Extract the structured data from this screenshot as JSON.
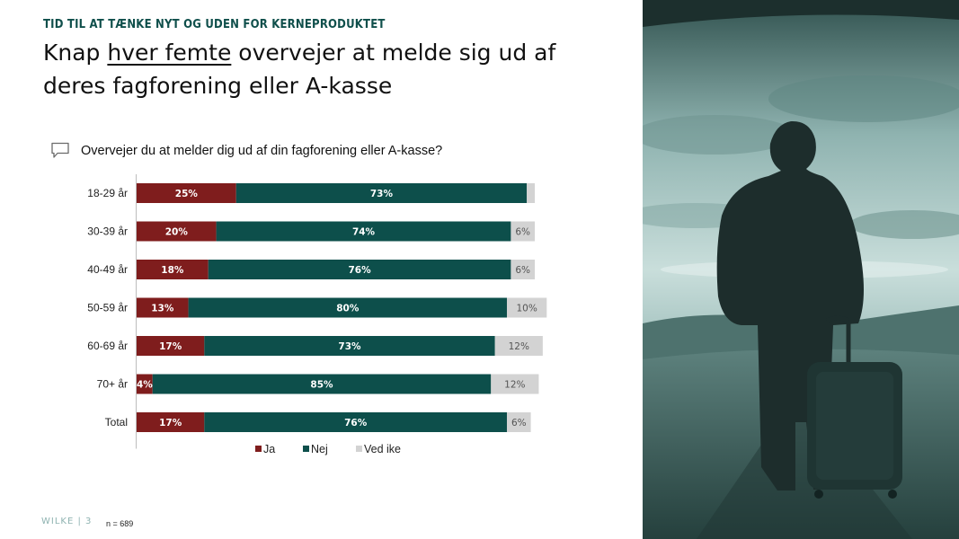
{
  "header": {
    "kicker": "TID TIL AT TÆNKE NYT OG UDEN FOR KERNEPRODUKTET",
    "title_before": "Knap ",
    "title_emphasis": "hver femte",
    "title_after": " overvejer at melde sig ud af deres fagforening eller A-kasse"
  },
  "question": {
    "icon": "speech-bubble-icon",
    "text": "Overvejer du at melder dig ud af din fagforening eller A-kasse?"
  },
  "chart_data": {
    "type": "bar",
    "orientation": "horizontal-stacked-100",
    "categories": [
      "18-29 år",
      "30-39 år",
      "40-49 år",
      "50-59 år",
      "60-69 år",
      "70+ år",
      "Total"
    ],
    "series": [
      {
        "name": "Ja",
        "color": "#7f1d1d",
        "values": [
          25,
          20,
          18,
          13,
          17,
          4,
          17
        ],
        "labels": [
          "25%",
          "20%",
          "18%",
          "13%",
          "17%",
          "4%",
          "17%"
        ]
      },
      {
        "name": "Nej",
        "color": "#0d4f4b",
        "values": [
          73,
          74,
          76,
          80,
          73,
          85,
          76
        ],
        "labels": [
          "73%",
          "74%",
          "76%",
          "80%",
          "73%",
          "85%",
          "76%"
        ]
      },
      {
        "name": "Ved ike",
        "color": "#d3d3d3",
        "values": [
          2,
          6,
          6,
          10,
          12,
          12,
          6
        ],
        "labels": [
          "",
          "6%",
          "6%",
          "10%",
          "12%",
          "12%",
          "6%"
        ]
      }
    ],
    "legend": [
      "Ja",
      "Nej",
      "Ved ike"
    ],
    "xlim": [
      0,
      100
    ]
  },
  "footer": {
    "brand": "WILKE | 3",
    "sample": "n = 689"
  },
  "colors": {
    "accent": "#0d4f4b",
    "ja": "#7f1d1d",
    "nej": "#0d4f4b",
    "ved_ikke": "#d3d3d3"
  },
  "photo": {
    "icon": "traveler-with-suitcase-photo"
  }
}
